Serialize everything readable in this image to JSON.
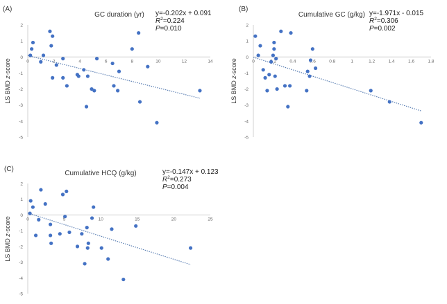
{
  "figure": {
    "colors": {
      "point": "#4472c4",
      "trendline": "#5b7fb3",
      "axis": "#d0d0d0",
      "text": "#333333"
    }
  },
  "chart_data": [
    {
      "type": "scatter",
      "panel_label": "(A)",
      "title": "GC duration (yr)",
      "ylabel_prefix": "LS BMD ",
      "ylabel_italic": "z",
      "ylabel_suffix": "-score",
      "equation": {
        "line1": "y=-0.202x + 0.091",
        "r2_sym": "R",
        "r2_sup": "2",
        "r2_val": "=0.224",
        "p_sym": "P",
        "p_val": "=0.010"
      },
      "xlim": [
        0,
        14
      ],
      "ylim": [
        -5,
        2
      ],
      "xticks": [
        "0",
        "2",
        "4",
        "6",
        "8",
        "10",
        "12",
        "14"
      ],
      "yticks": [
        "2",
        "1",
        "0",
        "-1",
        "-2",
        "-3",
        "-4",
        "-5"
      ],
      "trendline": {
        "slope": -0.202,
        "intercept": 0.091,
        "x_range": [
          0,
          13.2
        ]
      },
      "points": [
        [
          0.2,
          0.1
        ],
        [
          0.3,
          0.5
        ],
        [
          0.4,
          0.9
        ],
        [
          1.0,
          -0.3
        ],
        [
          1.2,
          0.1
        ],
        [
          1.7,
          1.6
        ],
        [
          1.8,
          0.7
        ],
        [
          1.9,
          1.3
        ],
        [
          1.9,
          -1.3
        ],
        [
          2.2,
          -0.5
        ],
        [
          2.7,
          -1.3
        ],
        [
          2.7,
          -0.1
        ],
        [
          3.0,
          -1.8
        ],
        [
          3.8,
          -1.1
        ],
        [
          3.9,
          -1.2
        ],
        [
          4.3,
          -0.8
        ],
        [
          4.5,
          -3.1
        ],
        [
          4.6,
          -1.2
        ],
        [
          4.9,
          -2.0
        ],
        [
          5.1,
          -2.1
        ],
        [
          5.3,
          -0.1
        ],
        [
          6.5,
          -0.4
        ],
        [
          6.6,
          -1.8
        ],
        [
          6.9,
          -2.1
        ],
        [
          7.0,
          -0.9
        ],
        [
          8.0,
          0.5
        ],
        [
          8.5,
          1.5
        ],
        [
          8.6,
          -2.8
        ],
        [
          9.2,
          -0.6
        ],
        [
          9.9,
          -4.1
        ],
        [
          13.2,
          -2.1
        ]
      ]
    },
    {
      "type": "scatter",
      "panel_label": "(B)",
      "title": "Cumulative GC (g/kg)",
      "ylabel_prefix": "LS BMD ",
      "ylabel_italic": "z",
      "ylabel_suffix": "-score",
      "equation": {
        "line1": "y=-1.971x - 0.015",
        "r2_sym": "R",
        "r2_sup": "2",
        "r2_val": "=0.306",
        "p_sym": "P",
        "p_val": "=0.002"
      },
      "xlim": [
        0,
        1.8
      ],
      "ylim": [
        -5,
        2
      ],
      "xticks": [
        "0",
        "0.2",
        "0.4",
        "0.6",
        "0.8",
        "1",
        "1.2",
        "1.4",
        "1.6",
        "1.8"
      ],
      "yticks": [
        "2",
        "1",
        "0",
        "-1",
        "-2",
        "-3",
        "-4",
        "-5"
      ],
      "trendline": {
        "slope": -1.971,
        "intercept": -0.015,
        "x_range": [
          0,
          1.7
        ]
      },
      "points": [
        [
          0.02,
          1.3
        ],
        [
          0.05,
          0.1
        ],
        [
          0.07,
          0.7
        ],
        [
          0.1,
          -0.8
        ],
        [
          0.12,
          -1.3
        ],
        [
          0.14,
          -2.1
        ],
        [
          0.16,
          -1.1
        ],
        [
          0.18,
          -0.3
        ],
        [
          0.2,
          0.1
        ],
        [
          0.21,
          0.5
        ],
        [
          0.21,
          0.9
        ],
        [
          0.22,
          -1.2
        ],
        [
          0.23,
          -0.1
        ],
        [
          0.24,
          -2.0
        ],
        [
          0.28,
          1.6
        ],
        [
          0.32,
          -1.8
        ],
        [
          0.35,
          -3.1
        ],
        [
          0.37,
          -1.8
        ],
        [
          0.38,
          1.5
        ],
        [
          0.54,
          -2.1
        ],
        [
          0.55,
          -0.9
        ],
        [
          0.57,
          -1.2
        ],
        [
          0.58,
          -0.2
        ],
        [
          0.6,
          0.5
        ],
        [
          0.63,
          -0.7
        ],
        [
          1.19,
          -2.1
        ],
        [
          1.38,
          -2.8
        ],
        [
          1.7,
          -4.1
        ]
      ]
    },
    {
      "type": "scatter",
      "panel_label": "(C)",
      "title": "Cumulative HCQ (g/kg)",
      "ylabel_prefix": "LS BMD ",
      "ylabel_italic": "z",
      "ylabel_suffix": "-score",
      "equation": {
        "line1": "y=-0.147x + 0.123",
        "r2_sym": "R",
        "r2_sup": "2",
        "r2_val": "=0.273",
        "p_sym": "P",
        "p_val": "=0.004"
      },
      "xlim": [
        0,
        25
      ],
      "ylim": [
        -5,
        2
      ],
      "xticks": [
        "0",
        "5",
        "10",
        "15",
        "20",
        "25"
      ],
      "yticks": [
        "2",
        "1",
        "0",
        "-1",
        "-2",
        "-3",
        "-4",
        "-5"
      ],
      "trendline": {
        "slope": -0.147,
        "intercept": 0.123,
        "x_range": [
          0,
          22.3
        ]
      },
      "points": [
        [
          0.3,
          0.1
        ],
        [
          0.4,
          0.9
        ],
        [
          0.7,
          0.5
        ],
        [
          1.1,
          -1.3
        ],
        [
          1.5,
          -0.3
        ],
        [
          1.8,
          1.6
        ],
        [
          2.4,
          0.7
        ],
        [
          3.1,
          -0.6
        ],
        [
          3.1,
          -1.3
        ],
        [
          3.2,
          -1.8
        ],
        [
          4.4,
          -1.2
        ],
        [
          4.8,
          1.3
        ],
        [
          5.1,
          -0.1
        ],
        [
          5.3,
          1.5
        ],
        [
          5.7,
          -1.1
        ],
        [
          6.8,
          -2.0
        ],
        [
          7.4,
          -1.2
        ],
        [
          7.8,
          -3.1
        ],
        [
          8.1,
          -0.8
        ],
        [
          8.2,
          -2.1
        ],
        [
          8.3,
          -1.8
        ],
        [
          8.8,
          -0.2
        ],
        [
          9.0,
          0.5
        ],
        [
          10.1,
          -2.1
        ],
        [
          11.0,
          -2.8
        ],
        [
          11.5,
          -0.9
        ],
        [
          13.1,
          -4.1
        ],
        [
          14.8,
          -0.7
        ],
        [
          22.3,
          -2.1
        ]
      ]
    }
  ]
}
